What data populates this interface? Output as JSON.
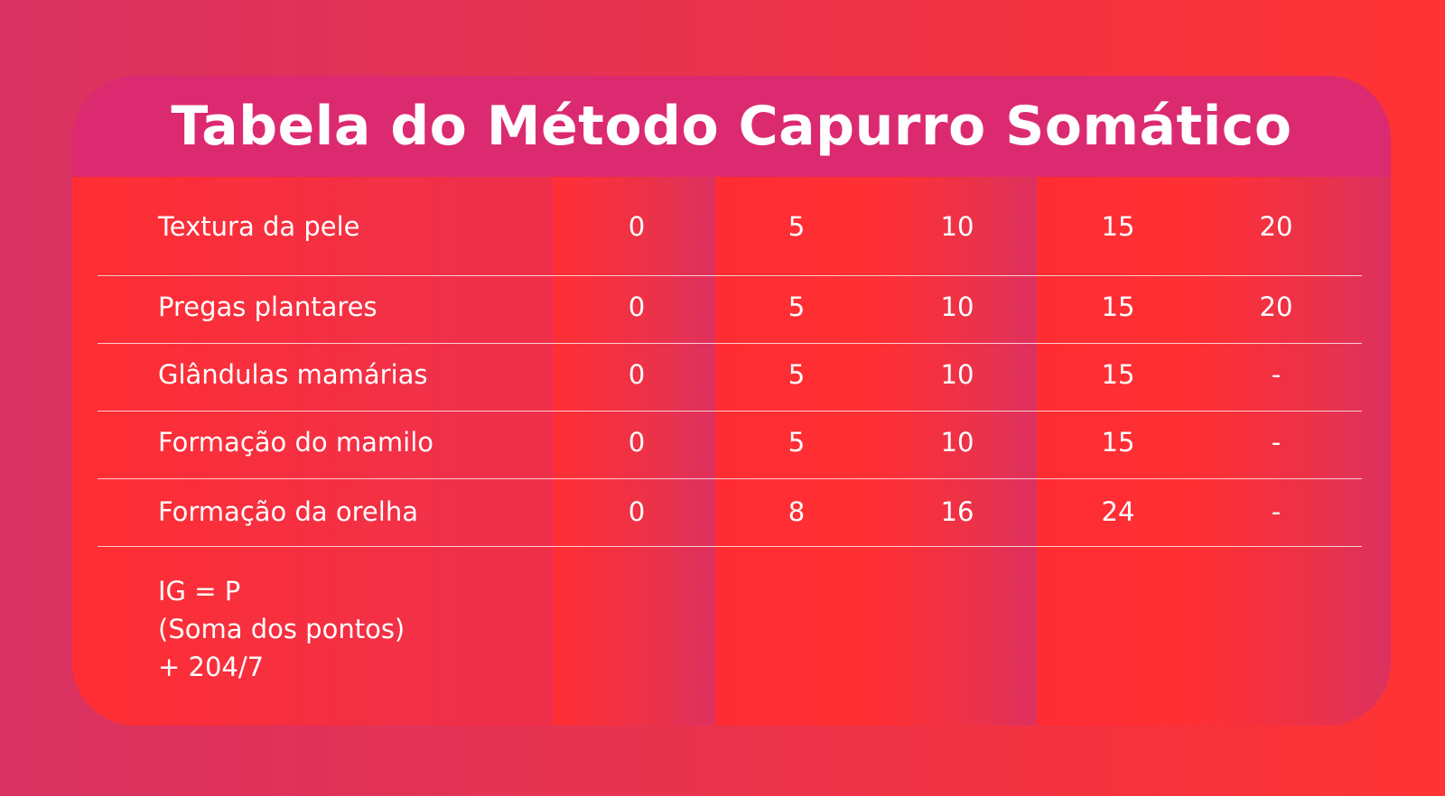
{
  "title": "Tabela do Método Capurro Somático",
  "colors": {
    "background": "#e8334f",
    "title_bar": "#dc2a70",
    "text": "#ffffff"
  },
  "chart_data": {
    "type": "table",
    "rows": [
      {
        "label": "Textura da pele",
        "values": [
          "0",
          "5",
          "10",
          "15",
          "20"
        ]
      },
      {
        "label": "Pregas plantares",
        "values": [
          "0",
          "5",
          "10",
          "15",
          "20"
        ]
      },
      {
        "label": "Glândulas mamárias",
        "values": [
          "0",
          "5",
          "10",
          "15",
          "-"
        ]
      },
      {
        "label": "Formação do mamilo",
        "values": [
          "0",
          "5",
          "10",
          "15",
          "-"
        ]
      },
      {
        "label": "Formação da orelha",
        "values": [
          "0",
          "8",
          "16",
          "24",
          "-"
        ]
      }
    ],
    "formula": [
      "IG = P",
      "(Soma dos pontos)",
      "+ 204/7"
    ]
  }
}
